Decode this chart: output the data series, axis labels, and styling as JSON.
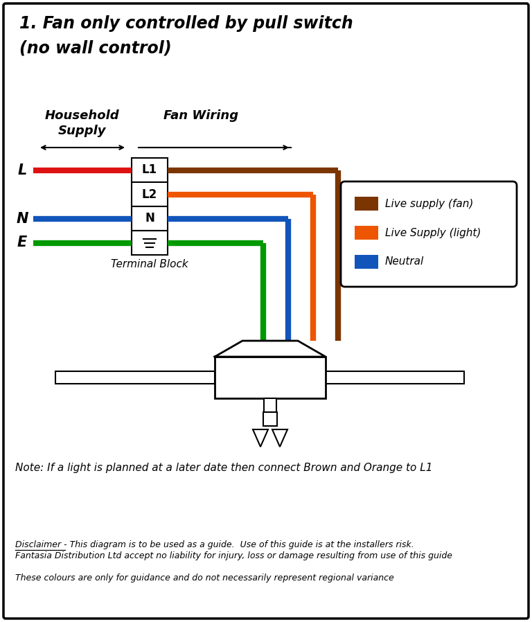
{
  "title_line1": "1. Fan only controlled by pull switch",
  "title_line2": "(no wall control)",
  "bg_color": "#ffffff",
  "household_label1": "Household",
  "household_label2": "Supply",
  "fan_wiring_label": "Fan Wiring",
  "terminal_block_label": "Terminal Block",
  "terminal_labels": [
    "L1",
    "L2",
    "N",
    "≡"
  ],
  "input_wire_labels": [
    "L",
    "N",
    "E"
  ],
  "input_wire_rows": [
    0,
    2,
    3
  ],
  "input_wire_colors": [
    "#dd1111",
    "#1155bb",
    "#009900"
  ],
  "output_wire_colors": [
    "#7B3500",
    "#ee5500",
    "#1155bb",
    "#009900"
  ],
  "legend_items": [
    {
      "color": "#7B3500",
      "label": "Live supply (fan)"
    },
    {
      "color": "#ee5500",
      "label": "Live Supply (light)"
    },
    {
      "color": "#1155bb",
      "label": "Neutral"
    }
  ],
  "note_text": "Note: If a light is planned at a later date then connect Brown and Orange to L1",
  "disclaimer1_underline": "Disclaimer",
  "disclaimer1_rest": " - This diagram is to be used as a guide.  Use of this guide is at the installers risk.",
  "disclaimer2": "Fantasia Distribution Ltd accept no liability for injury, loss or damage resulting from use of this guide",
  "disclaimer3": "These colours are only for guidance and do not necessarily represent regional variance"
}
